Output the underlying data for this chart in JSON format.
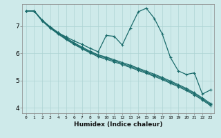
{
  "xlabel": "Humidex (Indice chaleur)",
  "background_color": "#ceeaea",
  "line_color": "#1a6b6b",
  "xlim": [
    -0.5,
    23.5
  ],
  "ylim": [
    3.8,
    7.8
  ],
  "yticks": [
    4,
    5,
    6,
    7
  ],
  "xtick_labels": [
    "0",
    "1",
    "2",
    "3",
    "4",
    "5",
    "6",
    "7",
    "8",
    "9",
    "10",
    "11",
    "12",
    "13",
    "14",
    "15",
    "16",
    "17",
    "18",
    "19",
    "20",
    "21",
    "22",
    "23"
  ],
  "xtick_positions": [
    0,
    1,
    2,
    3,
    4,
    5,
    6,
    7,
    8,
    9,
    10,
    11,
    12,
    13,
    14,
    15,
    16,
    17,
    18,
    19,
    20,
    21,
    22,
    23
  ],
  "curved_x": [
    0,
    1,
    2,
    3,
    4,
    5,
    6,
    7,
    8,
    9,
    10,
    11,
    12,
    13,
    14,
    15,
    16,
    17,
    18,
    19,
    20,
    21,
    22,
    23
  ],
  "curved_y": [
    7.55,
    7.55,
    7.2,
    6.95,
    6.75,
    6.6,
    6.45,
    6.32,
    6.18,
    6.05,
    6.65,
    6.62,
    6.3,
    6.92,
    7.52,
    7.65,
    7.28,
    6.7,
    5.85,
    5.35,
    5.22,
    5.28,
    4.5,
    4.65
  ],
  "straight1_x": [
    0,
    1,
    2,
    3,
    4,
    5,
    6,
    7,
    8,
    9,
    10,
    11,
    12,
    13,
    14,
    15,
    16,
    17,
    18,
    19,
    20,
    21,
    22,
    23
  ],
  "straight1_y": [
    7.55,
    7.55,
    7.18,
    6.92,
    6.7,
    6.5,
    6.32,
    6.16,
    6.01,
    5.87,
    5.78,
    5.68,
    5.58,
    5.48,
    5.37,
    5.26,
    5.15,
    5.03,
    4.9,
    4.77,
    4.63,
    4.47,
    4.28,
    4.08
  ],
  "straight2_x": [
    0,
    1,
    2,
    3,
    4,
    5,
    6,
    7,
    8,
    9,
    10,
    11,
    12,
    13,
    14,
    15,
    16,
    17,
    18,
    19,
    20,
    21,
    22,
    23
  ],
  "straight2_y": [
    7.55,
    7.55,
    7.2,
    6.95,
    6.73,
    6.53,
    6.35,
    6.19,
    6.04,
    5.91,
    5.82,
    5.72,
    5.62,
    5.52,
    5.41,
    5.3,
    5.19,
    5.07,
    4.94,
    4.81,
    4.67,
    4.51,
    4.32,
    4.12
  ],
  "straight3_x": [
    0,
    1,
    2,
    3,
    4,
    5,
    6,
    7,
    8,
    9,
    10,
    11,
    12,
    13,
    14,
    15,
    16,
    17,
    18,
    19,
    20,
    21,
    22,
    23
  ],
  "straight3_y": [
    7.55,
    7.55,
    7.22,
    6.97,
    6.76,
    6.56,
    6.38,
    6.22,
    6.07,
    5.94,
    5.86,
    5.76,
    5.66,
    5.56,
    5.45,
    5.34,
    5.23,
    5.11,
    4.98,
    4.85,
    4.71,
    4.55,
    4.36,
    4.16
  ],
  "grid_color": "#aed4d4",
  "marker": "+",
  "marker_size": 3,
  "linewidth": 0.9
}
